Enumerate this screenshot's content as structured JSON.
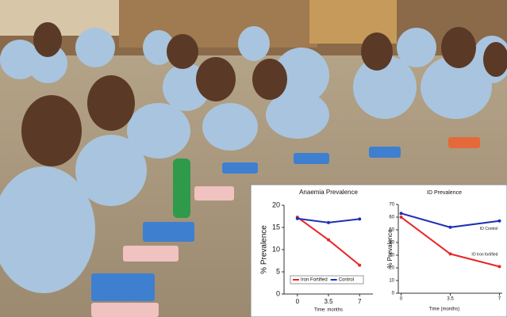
{
  "chart_data": [
    {
      "type": "line",
      "title": "Anaemia Prevalence",
      "x_label": "Time: months",
      "y_label": "% Prevalence",
      "x": [
        0,
        3.5,
        7
      ],
      "xlim": [
        -1.5,
        8.5
      ],
      "xticks": [
        0,
        3.5,
        7
      ],
      "ylim": [
        0,
        20
      ],
      "yticks": [
        0,
        5,
        10,
        15,
        20
      ],
      "legend": "lower center",
      "series": [
        {
          "name": "Iron Fortified",
          "color": "#e8262a",
          "values": [
            17.3,
            12.2,
            6.5
          ]
        },
        {
          "name": "Control",
          "color": "#1f2fb5",
          "values": [
            17.0,
            16.1,
            16.9
          ]
        }
      ]
    },
    {
      "type": "line",
      "title": "ID Prevalence",
      "x_label": "Time (months)",
      "y_label": "% Prevalence",
      "x": [
        0,
        3.5,
        7
      ],
      "xlim": [
        -0.2,
        7.2
      ],
      "xticks": [
        0,
        3.5,
        7
      ],
      "ylim": [
        0,
        70
      ],
      "yticks": [
        0,
        10,
        20,
        30,
        40,
        50,
        60,
        70
      ],
      "legend": "inline",
      "series": [
        {
          "name": "IO Control",
          "color": "#1f2fb5",
          "values": [
            63,
            52,
            57
          ]
        },
        {
          "name": "IO Iron fortified",
          "color": "#e8262a",
          "values": [
            60,
            31,
            21
          ]
        }
      ]
    }
  ]
}
